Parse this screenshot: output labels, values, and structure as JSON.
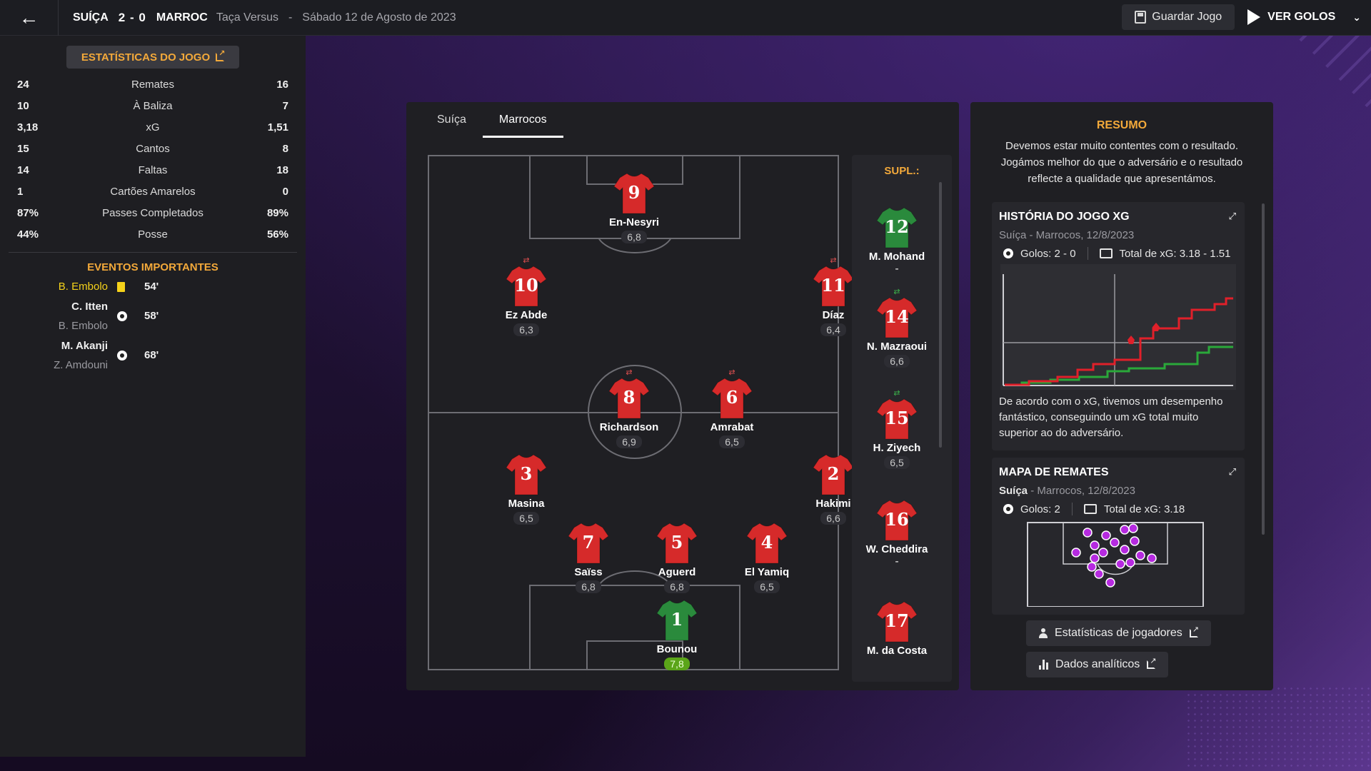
{
  "header": {
    "home_team": "SUÍÇA",
    "score": "2 - 0",
    "away_team": "MARROC",
    "competition": "Taça Versus",
    "separator": "-",
    "date": "Sábado 12 de Agosto de 2023",
    "save_label": "Guardar Jogo",
    "goals_label": "VER GOLOS"
  },
  "stats": {
    "header_label": "ESTATÍSTICAS DO JOGO",
    "rows": [
      {
        "home": "24",
        "label": "Remates",
        "away": "16"
      },
      {
        "home": "10",
        "label": "À Baliza",
        "away": "7"
      },
      {
        "home": "3,18",
        "label": "xG",
        "away": "1,51"
      },
      {
        "home": "15",
        "label": "Cantos",
        "away": "8"
      },
      {
        "home": "14",
        "label": "Faltas",
        "away": "18"
      },
      {
        "home": "1",
        "label": "Cartões Amarelos",
        "away": "0"
      },
      {
        "home": "87%",
        "label": "Passes Completados",
        "away": "89%"
      },
      {
        "home": "44%",
        "label": "Posse",
        "away": "56%"
      }
    ]
  },
  "events": {
    "title": "EVENTOS IMPORTANTES",
    "items": [
      {
        "player": "B. Embolo",
        "assist": "",
        "type": "yellow-card",
        "minute": "54'"
      },
      {
        "player": "C. Itten",
        "assist": "B. Embolo",
        "type": "goal",
        "minute": "58'"
      },
      {
        "player": "M. Akanji",
        "assist": "Z. Amdouni",
        "type": "goal",
        "minute": "68'"
      }
    ]
  },
  "tabs": [
    "Suíça",
    "Marrocos"
  ],
  "active_tab": "Marrocos",
  "players": [
    {
      "number": "9",
      "name": "En-Nesyri",
      "rating": "6,8",
      "kit": "red",
      "swap": ""
    },
    {
      "number": "10",
      "name": "Ez Abde",
      "rating": "6,3",
      "kit": "red",
      "swap": "out"
    },
    {
      "number": "11",
      "name": "Díaz",
      "rating": "6,4",
      "kit": "red",
      "swap": "out"
    },
    {
      "number": "8",
      "name": "Richardson",
      "rating": "6,9",
      "kit": "red",
      "swap": "out"
    },
    {
      "number": "6",
      "name": "Amrabat",
      "rating": "6,5",
      "kit": "red",
      "swap": "out"
    },
    {
      "number": "3",
      "name": "Masina",
      "rating": "6,5",
      "kit": "red",
      "swap": ""
    },
    {
      "number": "2",
      "name": "Hakimi",
      "rating": "6,6",
      "kit": "red",
      "swap": ""
    },
    {
      "number": "7",
      "name": "Saïss",
      "rating": "6,8",
      "kit": "red",
      "swap": ""
    },
    {
      "number": "5",
      "name": "Aguerd",
      "rating": "6,8",
      "kit": "red",
      "swap": ""
    },
    {
      "number": "4",
      "name": "El Yamiq",
      "rating": "6,5",
      "kit": "red",
      "swap": ""
    },
    {
      "number": "1",
      "name": "Bounou",
      "rating": "7,8",
      "kit": "green",
      "swap": "",
      "best": true
    }
  ],
  "subs": {
    "title": "SUPL.:",
    "items": [
      {
        "number": "12",
        "name": "M. Mohand",
        "rating": "-",
        "kit": "green",
        "swap": ""
      },
      {
        "number": "14",
        "name": "N. Mazraoui",
        "rating": "6,6",
        "kit": "red",
        "swap": "in"
      },
      {
        "number": "15",
        "name": "H. Ziyech",
        "rating": "6,5",
        "kit": "red",
        "swap": "in"
      },
      {
        "number": "16",
        "name": "W. Cheddira",
        "rating": "-",
        "kit": "red",
        "swap": ""
      },
      {
        "number": "17",
        "name": "M. da Costa",
        "rating": "",
        "kit": "red",
        "swap": ""
      }
    ]
  },
  "summary": {
    "title": "RESUMO",
    "text": "Devemos estar muito contentes com o resultado. Jogámos melhor do que o adversário e o resultado reflecte a qualidade que apresentámos."
  },
  "xg_card": {
    "title": "HISTÓRIA DO JOGO XG",
    "subtitle": "Suíça - Marrocos, 12/8/2023",
    "goals": "Golos: 2 - 0",
    "xg_total": "Total de xG: 3.18 - 1.51",
    "description": "De acordo com o xG, tivemos um desempenho fantástico, conseguindo um xG total muito superior ao do adversário."
  },
  "shots_card": {
    "title": "MAPA DE REMATES",
    "subtitle_team": "Suíça",
    "subtitle_rest": " - Marrocos, 12/8/2023",
    "goals": "Golos: 2",
    "xg_total": "Total de xG: 3.18"
  },
  "buttons": {
    "player_stats": "Estatísticas de jogadores",
    "analytics": "Dados analíticos"
  },
  "colors": {
    "accent": "#f3a93a",
    "kit_red": "#d62a2a",
    "kit_green": "#2a8a3c",
    "xg_home": "#e0202a",
    "xg_away": "#2aa83a",
    "shot_marker": "#b62ae0",
    "best_rating": "#5ba519"
  }
}
